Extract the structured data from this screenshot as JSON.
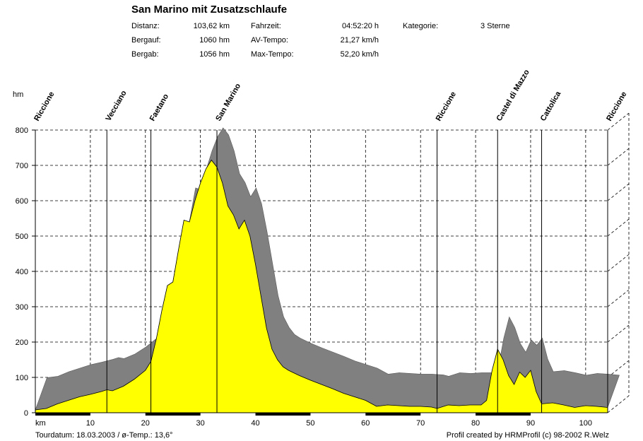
{
  "title": "San Marino mit Zusatzschlaufe",
  "stats": {
    "distanz_label": "Distanz:",
    "distanz": "103,62 km",
    "bergauf_label": "Bergauf:",
    "bergauf": "1060 hm",
    "bergab_label": "Bergab:",
    "bergab": "1056 hm",
    "fahrzeit_label": "Fahrzeit:",
    "fahrzeit": "04:52:20 h",
    "avtempo_label": "AV-Tempo:",
    "avtempo": "21,27 km/h",
    "maxtempo_label": "Max-Tempo:",
    "maxtempo": "52,20 km/h",
    "kategorie_label": "Kategorie:",
    "kategorie": "3 Sterne"
  },
  "footer": {
    "left": "Tourdatum: 18.03.2003  /  ø-Temp.: 13,6°",
    "right": "Profil created by HRMProfil (c) 98-2002 R.Welz"
  },
  "colors": {
    "fill": "#ffff00",
    "shadow": "#808080",
    "grid": "#000000"
  },
  "chart_data": {
    "type": "area",
    "ylabel": "hm",
    "xlabel": "km",
    "xlim": [
      0,
      104
    ],
    "ylim": [
      0,
      800
    ],
    "yticks": [
      0,
      100,
      200,
      300,
      400,
      500,
      600,
      700,
      800
    ],
    "xticks": [
      10,
      20,
      30,
      40,
      50,
      60,
      70,
      80,
      90,
      100
    ],
    "grid": true,
    "waypoints": [
      {
        "name": "Riccione",
        "km": 0
      },
      {
        "name": "Vecciano",
        "km": 13
      },
      {
        "name": "Faetano",
        "km": 21
      },
      {
        "name": "San Marino",
        "km": 33
      },
      {
        "name": "Riccione",
        "km": 73
      },
      {
        "name": "Castel di Mazzo",
        "km": 84
      },
      {
        "name": "Cattolica",
        "km": 92
      },
      {
        "name": "Riccione",
        "km": 104
      }
    ],
    "x": [
      0,
      2,
      4,
      6,
      8,
      10,
      12,
      13,
      14,
      16,
      18,
      20,
      21,
      22,
      23,
      24,
      25,
      26,
      27,
      28,
      29,
      30,
      31,
      32,
      33,
      34,
      35,
      36,
      37,
      38,
      39,
      40,
      41,
      42,
      43,
      44,
      45,
      46,
      48,
      50,
      52,
      54,
      56,
      58,
      60,
      62,
      64,
      66,
      68,
      70,
      72,
      73,
      75,
      77,
      79,
      81,
      82,
      83,
      84,
      85,
      86,
      87,
      88,
      89,
      90,
      91,
      92,
      94,
      96,
      98,
      100,
      102,
      104
    ],
    "y": [
      8,
      12,
      25,
      35,
      45,
      52,
      60,
      65,
      62,
      75,
      95,
      120,
      145,
      210,
      290,
      360,
      370,
      460,
      545,
      540,
      600,
      650,
      690,
      715,
      695,
      650,
      585,
      560,
      520,
      545,
      500,
      420,
      330,
      240,
      180,
      150,
      130,
      120,
      105,
      92,
      80,
      68,
      55,
      45,
      35,
      18,
      22,
      20,
      18,
      18,
      16,
      12,
      22,
      20,
      22,
      22,
      35,
      120,
      180,
      150,
      105,
      80,
      115,
      100,
      120,
      60,
      25,
      28,
      22,
      15,
      20,
      18,
      15
    ]
  }
}
